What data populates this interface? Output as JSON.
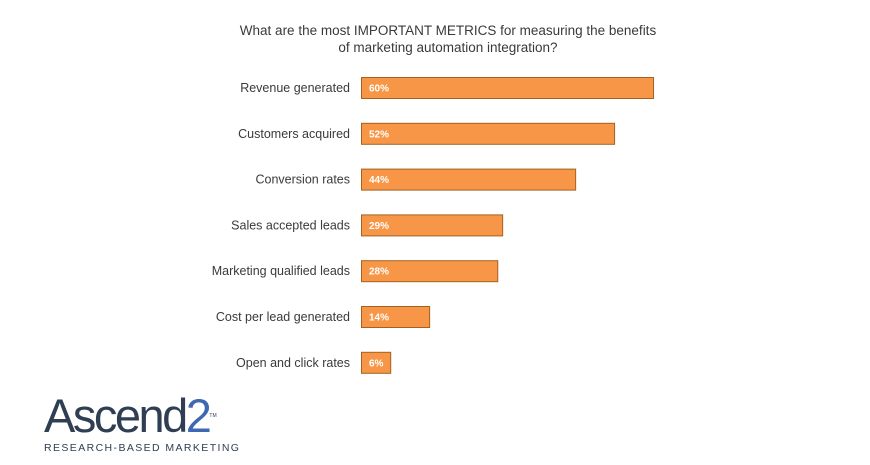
{
  "chart_data": {
    "type": "bar",
    "orientation": "horizontal",
    "title_lines": [
      "What are the most IMPORTANT METRICS for measuring the benefits",
      "of marketing automation integration?"
    ],
    "categories": [
      "Revenue generated",
      "Customers acquired",
      "Conversion rates",
      "Sales accepted leads",
      "Marketing qualified leads",
      "Cost per lead generated",
      "Open and click rates"
    ],
    "values": [
      60,
      52,
      44,
      29,
      28,
      14,
      6
    ],
    "value_labels": [
      "60%",
      "52%",
      "44%",
      "29%",
      "28%",
      "14%",
      "6%"
    ],
    "unit": "%",
    "xlim": [
      0,
      100
    ],
    "grid": false,
    "legend": "none",
    "bar_color": "#f79646"
  },
  "logo": {
    "word": "Ascend",
    "digit": "2",
    "tm": "TM",
    "tagline": "RESEARCH-BASED MARKETING"
  }
}
